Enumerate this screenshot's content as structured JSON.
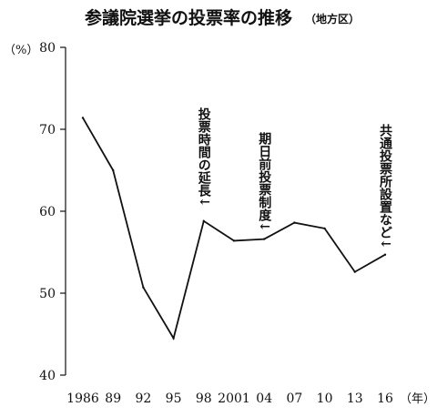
{
  "chart_data": {
    "type": "line",
    "title": "参議院選挙の投票率の推移",
    "subtitle": "（地方区）",
    "ylabel": "（%）",
    "xlabel": "（年）",
    "ylim": [
      40,
      80
    ],
    "yticks": [
      40,
      50,
      60,
      70,
      80
    ],
    "x_tick_labels": [
      "1986",
      "89",
      "92",
      "95",
      "98",
      "2001",
      "04",
      "07",
      "10",
      "13",
      "16"
    ],
    "x": [
      1986,
      1989,
      1992,
      1995,
      1998,
      2001,
      2004,
      2007,
      2010,
      2013,
      2016
    ],
    "values": [
      71.4,
      65.0,
      50.7,
      44.5,
      58.8,
      56.4,
      56.6,
      58.6,
      57.9,
      52.6,
      54.7
    ],
    "grid": false,
    "annotations": [
      {
        "x": 1998,
        "text": "投票時間の延長↓"
      },
      {
        "x": 2004,
        "text": "期日前投票制度↓"
      },
      {
        "x": 2016,
        "text": "共通投票所設置など↓"
      }
    ]
  }
}
